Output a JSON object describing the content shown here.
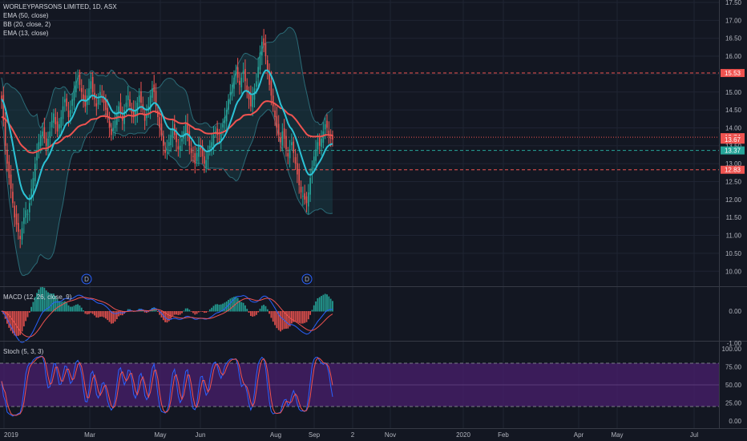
{
  "header": {
    "symbol_line": "WORLEYPARSONS LIMITED, 1D, ASX",
    "studies": [
      "EMA (50, close)",
      "BB (20, close, 2)",
      "EMA (13, close)"
    ]
  },
  "macd": {
    "label": "MACD (12, 26, close, 9)",
    "ticks": [
      "0.00",
      "-1.00"
    ]
  },
  "stoch": {
    "label": "Stoch (5, 3, 3)",
    "ticks": [
      "100.00",
      "75.00",
      "50.00",
      "25.00",
      "0.00"
    ]
  },
  "colors": {
    "background": "#131722",
    "grid": "#1f2433",
    "candle_up": "#26a69a",
    "candle_down": "#ef5350",
    "ema50": "#ef5350",
    "ema13": "#2cc3d6",
    "bb": "#2b6b77",
    "stoch_band": "#4a1f6e",
    "stoch_k": "#2962ff",
    "stoch_d": "#ef5350"
  },
  "chart_data": {
    "type": "candlestick",
    "title": "WORLEYPARSONS LIMITED, 1D, ASX",
    "price_ticks": [
      17.5,
      17.0,
      16.5,
      16.0,
      15.5,
      15.0,
      14.5,
      14.0,
      13.5,
      13.0,
      12.5,
      12.0,
      11.5,
      11.0,
      10.5,
      10.0
    ],
    "price_tick_labels": [
      "17.50",
      "17.00",
      "16.50",
      "16.00",
      "15.50",
      "15.00",
      "14.50",
      "14.00",
      "13.50",
      "13.00",
      "12.50",
      "12.00",
      "11.50",
      "11.00",
      "10.50",
      "10.00"
    ],
    "ylim": [
      9.5,
      17.7
    ],
    "x_labels": [
      "2019",
      "Mar",
      "May",
      "Jun",
      "Aug",
      "Sep",
      "2",
      "Nov",
      "2020",
      "Feb",
      "Apr",
      "May",
      "Jul"
    ],
    "horizontal_levels": [
      {
        "price": 15.53,
        "label": "15.53",
        "color": "#ef5350",
        "style": "dashed"
      },
      {
        "price": 13.74,
        "label": "13.74",
        "color": "#ef5350",
        "style": "dotted"
      },
      {
        "price": 13.67,
        "label": "13.67",
        "color": "#ef5350",
        "style": "none"
      },
      {
        "price": 13.37,
        "label": "13.37",
        "color": "#26a69a",
        "style": "dashed"
      },
      {
        "price": 12.83,
        "label": "12.83",
        "color": "#ef5350",
        "style": "dashed"
      }
    ],
    "dividend_markers": [
      "D",
      "D"
    ],
    "closes": [
      14.8,
      14.2,
      13.5,
      13.0,
      12.6,
      12.3,
      11.9,
      11.5,
      11.3,
      11.1,
      10.9,
      11.2,
      11.5,
      11.7,
      11.6,
      11.9,
      12.3,
      12.6,
      13.0,
      13.3,
      13.6,
      13.8,
      13.9,
      13.7,
      13.5,
      13.7,
      13.9,
      14.2,
      14.4,
      14.1,
      13.9,
      14.1,
      14.3,
      14.6,
      14.8,
      14.6,
      14.3,
      14.5,
      14.8,
      15.1,
      15.3,
      15.4,
      15.2,
      15.0,
      14.8,
      14.6,
      14.9,
      15.1,
      15.3,
      15.0,
      14.8,
      14.6,
      14.8,
      15.0,
      14.9,
      14.7,
      14.5,
      14.3,
      14.0,
      13.8,
      14.0,
      14.2,
      14.4,
      14.6,
      14.4,
      14.2,
      14.5,
      14.7,
      14.9,
      14.6,
      14.4,
      14.3,
      14.5,
      14.7,
      14.9,
      14.7,
      14.5,
      14.2,
      14.4,
      14.6,
      14.9,
      15.1,
      15.0,
      14.6,
      14.3,
      14.0,
      13.8,
      13.5,
      13.3,
      13.4,
      13.6,
      13.8,
      14.0,
      13.8,
      13.6,
      13.4,
      13.5,
      13.7,
      13.9,
      14.1,
      13.8,
      13.5,
      13.3,
      13.2,
      13.0,
      13.3,
      13.5,
      13.4,
      13.2,
      13.0,
      13.1,
      13.3,
      13.5,
      13.6,
      13.8,
      13.9,
      13.8,
      13.7,
      13.9,
      14.1,
      14.3,
      14.5,
      14.8,
      15.0,
      15.2,
      15.4,
      15.6,
      15.4,
      15.2,
      15.4,
      15.6,
      15.3,
      15.0,
      14.8,
      14.6,
      14.9,
      15.1,
      15.3,
      15.7,
      16.1,
      16.4,
      16.3,
      16.0,
      15.6,
      15.2,
      14.9,
      14.6,
      14.3,
      14.0,
      13.8,
      13.6,
      13.9,
      13.7,
      13.4,
      13.2,
      13.4,
      13.6,
      13.3,
      13.0,
      12.7,
      12.4,
      12.2,
      12.1,
      12.0,
      11.9,
      12.2,
      12.6,
      12.9,
      13.2,
      13.4,
      13.6,
      13.5,
      13.7,
      13.9,
      14.1,
      14.0,
      13.8,
      13.7,
      13.67
    ]
  }
}
